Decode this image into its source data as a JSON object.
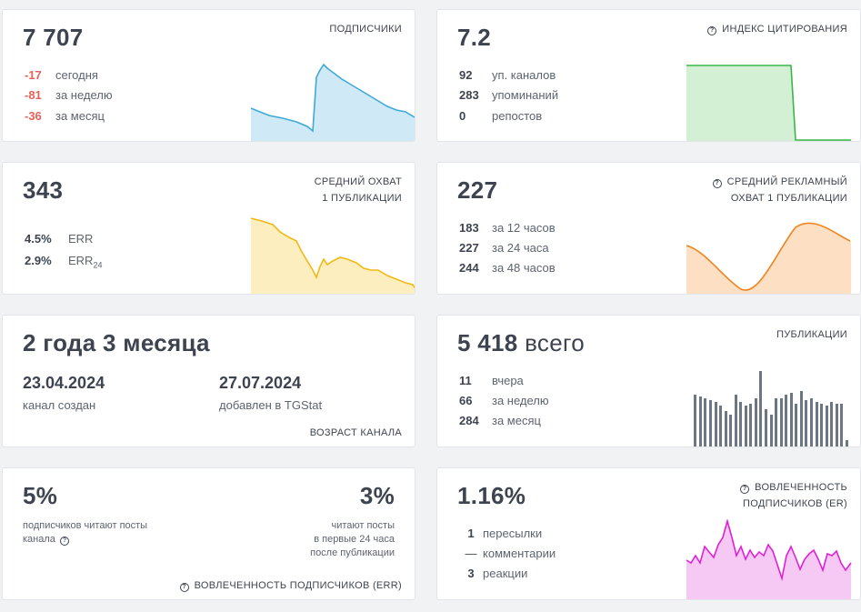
{
  "subscribers": {
    "value": "7 707",
    "caption": "ПОДПИСЧИКИ",
    "rows": [
      {
        "value": "-17",
        "label": "сегодня"
      },
      {
        "value": "-81",
        "label": "за неделю"
      },
      {
        "value": "-36",
        "label": "за месяц"
      }
    ],
    "color": "#3fa9d6"
  },
  "citation": {
    "value": "7.2",
    "caption": "ИНДЕКС ЦИТИРОВАНИЯ",
    "rows": [
      {
        "value": "92",
        "label": "уп. каналов"
      },
      {
        "value": "283",
        "label": "упоминаний"
      },
      {
        "value": "0",
        "label": "репостов"
      }
    ],
    "color": "#3ab54a"
  },
  "avg_reach": {
    "value": "343",
    "caption_line1": "СРЕДНИЙ ОХВАТ",
    "caption_line2": "1 ПУБЛИКАЦИИ",
    "rows": [
      {
        "value": "4.5%",
        "label": "ERR",
        "sub": ""
      },
      {
        "value": "2.9%",
        "label": "ERR",
        "sub": "24"
      }
    ],
    "color": "#f2b915"
  },
  "ad_reach": {
    "value": "227",
    "caption_line1": "СРЕДНИЙ РЕКЛАМНЫЙ",
    "caption_line2": "ОХВАТ 1 ПУБЛИКАЦИИ",
    "rows": [
      {
        "value": "183",
        "label": "за 12 часов"
      },
      {
        "value": "227",
        "label": "за 24 часа"
      },
      {
        "value": "244",
        "label": "за 48 часов"
      }
    ],
    "color": "#f0841e"
  },
  "age": {
    "value": "2 года 3 месяца",
    "created_date": "23.04.2024",
    "created_label": "канал создан",
    "added_date": "27.07.2024",
    "added_label": "добавлен в TGStat",
    "caption": "ВОЗРАСТ КАНАЛА"
  },
  "posts": {
    "value": "5 418",
    "suffix": "всего",
    "caption": "ПУБЛИКАЦИИ",
    "rows": [
      {
        "value": "11",
        "label": "вчера"
      },
      {
        "value": "66",
        "label": "за неделю"
      },
      {
        "value": "284",
        "label": "за месяц"
      }
    ],
    "color": "#6b7785"
  },
  "err": {
    "left_value": "5%",
    "left_text_line1": "подписчиков читают посты",
    "left_text_line2": "канала",
    "right_value": "3%",
    "right_text_line1": "читают посты",
    "right_text_line2": "в первые 24 часа",
    "right_text_line3": "после публикации",
    "caption": "ВОВЛЕЧЕННОСТЬ ПОДПИСЧИКОВ (ERR)"
  },
  "engagement": {
    "value": "1.16%",
    "caption_line1": "ВОВЛЕЧЕННОСТЬ",
    "caption_line2": "ПОДПИСЧИКОВ (ER)",
    "rows": [
      {
        "value": "1",
        "label": "пересылки"
      },
      {
        "value": "—",
        "label": "комментарии"
      },
      {
        "value": "3",
        "label": "реакции"
      }
    ],
    "color": "#e020d8"
  },
  "icons": {
    "help": "question-circle-icon"
  }
}
